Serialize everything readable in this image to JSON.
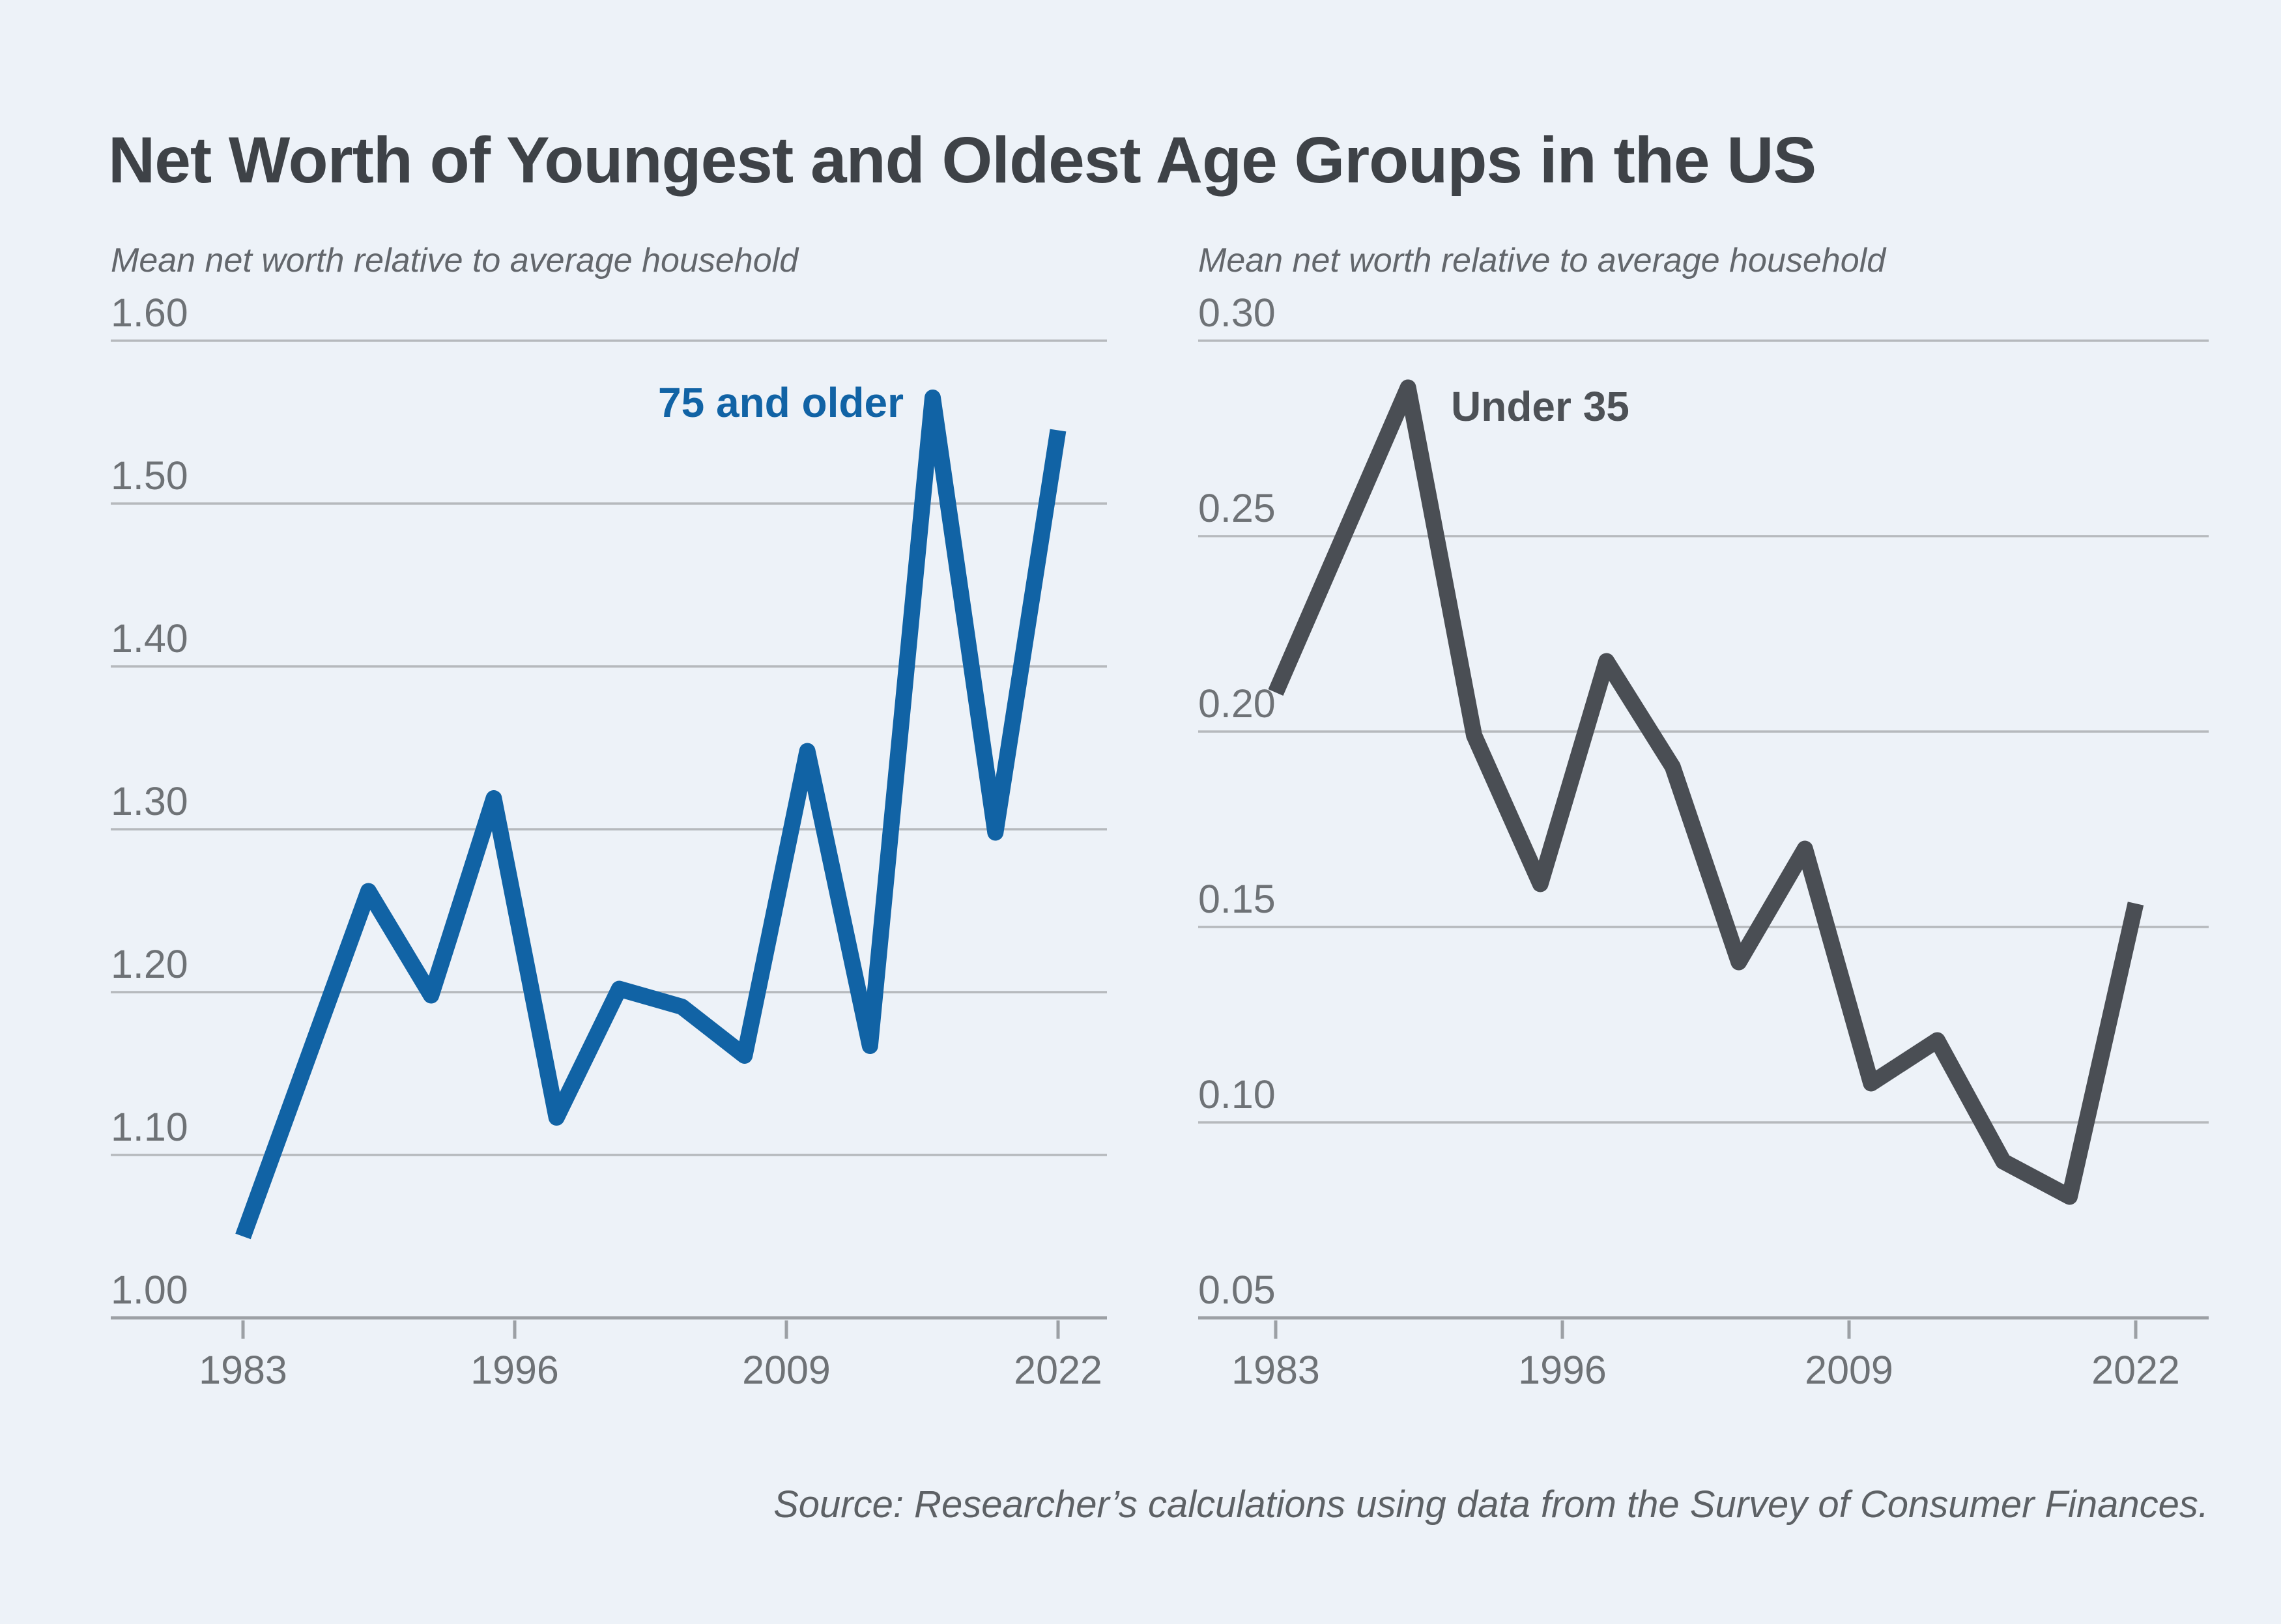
{
  "title": "Net Worth of Youngest and Oldest Age Groups in the US",
  "source": "Source: Researcher’s calculations using data from the Survey of Consumer Finances.",
  "colors": {
    "background": "#edf2f8",
    "blue_line": "#1163a5",
    "gray_line": "#4a4e54",
    "gridline": "#b6b9bd",
    "axis": "#9ca0a5",
    "tick_label": "#6e7276",
    "title": "#3e4247",
    "subtitle": "#63676c",
    "under35_label": "#4d5156"
  },
  "chart_data": [
    {
      "type": "line",
      "series_name": "75 and older",
      "subtitle": "Mean net worth relative to average household",
      "line_color": "#1163a5",
      "x": [
        1983,
        1989,
        1992,
        1995,
        1998,
        2001,
        2004,
        2007,
        2010,
        2013,
        2016,
        2019,
        2022
      ],
      "values": [
        1.05,
        1.262,
        1.198,
        1.319,
        1.123,
        1.202,
        1.191,
        1.161,
        1.348,
        1.167,
        1.565,
        1.298,
        1.545
      ],
      "ylim": [
        1.0,
        1.6
      ],
      "ytick_labels": [
        "1.60",
        "1.50",
        "1.40",
        "1.30",
        "1.20",
        "1.10",
        "1.00"
      ],
      "xticks": [
        1983,
        1996,
        2009,
        2022
      ],
      "xtick_labels": [
        "1983",
        "1996",
        "2009",
        "2022"
      ],
      "grid": true,
      "legend_position": "inside-top-right"
    },
    {
      "type": "line",
      "series_name": "Under 35",
      "subtitle": "Mean net worth relative to average household",
      "line_color": "#4a4e54",
      "x": [
        1983,
        1989,
        1992,
        1995,
        1998,
        2001,
        2004,
        2007,
        2010,
        2013,
        2016,
        2019,
        2022
      ],
      "values": [
        0.21,
        0.288,
        0.199,
        0.161,
        0.218,
        0.191,
        0.141,
        0.17,
        0.11,
        0.121,
        0.09,
        0.081,
        0.156
      ],
      "ylim": [
        0.05,
        0.3
      ],
      "ytick_labels": [
        "0.30",
        "0.25",
        "0.20",
        "0.15",
        "0.10",
        "0.05"
      ],
      "xticks": [
        1983,
        1996,
        2009,
        2022
      ],
      "xtick_labels": [
        "1983",
        "1996",
        "2009",
        "2022"
      ],
      "grid": true,
      "legend_position": "inside-top-left"
    }
  ]
}
